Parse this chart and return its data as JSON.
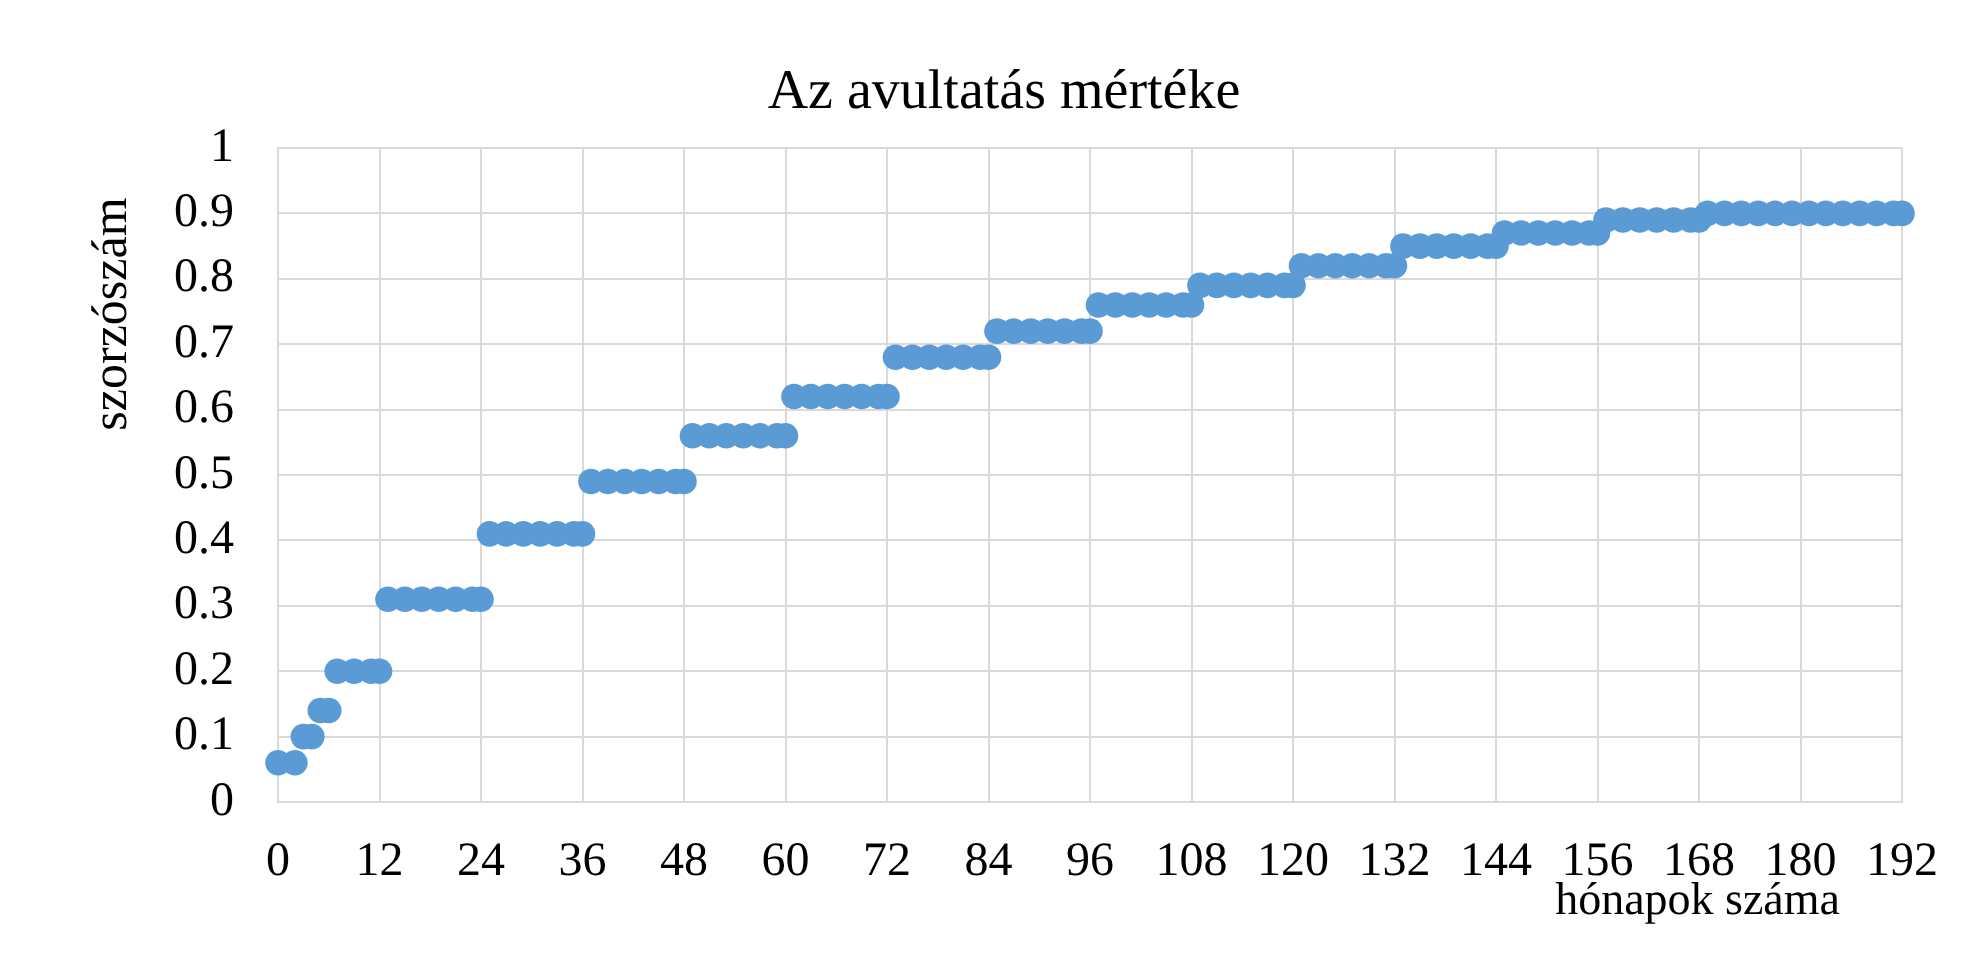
{
  "chart_data": {
    "type": "scatter",
    "title": "Az avultatás mértéke",
    "xlabel": "hónapok száma",
    "ylabel": "szorzószám",
    "x": [
      0,
      2,
      3,
      4,
      5,
      6,
      7,
      9,
      11,
      12,
      13,
      15,
      17,
      19,
      21,
      23,
      24,
      25,
      27,
      29,
      31,
      33,
      35,
      36,
      37,
      39,
      41,
      43,
      45,
      47,
      48,
      49,
      51,
      53,
      55,
      57,
      59,
      60,
      61,
      63,
      65,
      67,
      69,
      71,
      72,
      73,
      75,
      77,
      79,
      81,
      83,
      84,
      85,
      87,
      89,
      91,
      93,
      95,
      96,
      97,
      99,
      101,
      103,
      105,
      107,
      108,
      109,
      111,
      113,
      115,
      117,
      119,
      120,
      121,
      123,
      125,
      127,
      129,
      131,
      132,
      133,
      135,
      137,
      139,
      141,
      143,
      144,
      145,
      147,
      149,
      151,
      153,
      155,
      156,
      157,
      159,
      161,
      163,
      165,
      167,
      168,
      169,
      171,
      173,
      175,
      177,
      179,
      181,
      183,
      185,
      187,
      189,
      191,
      192
    ],
    "series": [
      {
        "color": "#5b9bd5",
        "values": [
          0.06,
          0.06,
          0.1,
          0.1,
          0.14,
          0.14,
          0.2,
          0.2,
          0.2,
          0.2,
          0.31,
          0.31,
          0.31,
          0.31,
          0.31,
          0.31,
          0.31,
          0.41,
          0.41,
          0.41,
          0.41,
          0.41,
          0.41,
          0.41,
          0.49,
          0.49,
          0.49,
          0.49,
          0.49,
          0.49,
          0.49,
          0.56,
          0.56,
          0.56,
          0.56,
          0.56,
          0.56,
          0.56,
          0.62,
          0.62,
          0.62,
          0.62,
          0.62,
          0.62,
          0.62,
          0.68,
          0.68,
          0.68,
          0.68,
          0.68,
          0.68,
          0.68,
          0.72,
          0.72,
          0.72,
          0.72,
          0.72,
          0.72,
          0.72,
          0.76,
          0.76,
          0.76,
          0.76,
          0.76,
          0.76,
          0.76,
          0.79,
          0.79,
          0.79,
          0.79,
          0.79,
          0.79,
          0.79,
          0.82,
          0.82,
          0.82,
          0.82,
          0.82,
          0.82,
          0.82,
          0.85,
          0.85,
          0.85,
          0.85,
          0.85,
          0.85,
          0.85,
          0.87,
          0.87,
          0.87,
          0.87,
          0.87,
          0.87,
          0.87,
          0.89,
          0.89,
          0.89,
          0.89,
          0.89,
          0.89,
          0.89,
          0.9,
          0.9,
          0.9,
          0.9,
          0.9,
          0.9,
          0.9,
          0.9,
          0.9,
          0.9,
          0.9,
          0.9,
          0.9
        ]
      }
    ],
    "xlim": [
      0,
      192
    ],
    "xticks": [
      0,
      12,
      24,
      36,
      48,
      60,
      72,
      84,
      96,
      108,
      120,
      132,
      144,
      156,
      168,
      180,
      192
    ],
    "ylim": [
      0,
      1
    ],
    "yticks": [
      0,
      0.1,
      0.2,
      0.3,
      0.4,
      0.5,
      0.6,
      0.7,
      0.8,
      0.9,
      1
    ],
    "grid": true,
    "legend": false,
    "marker": "circle"
  }
}
